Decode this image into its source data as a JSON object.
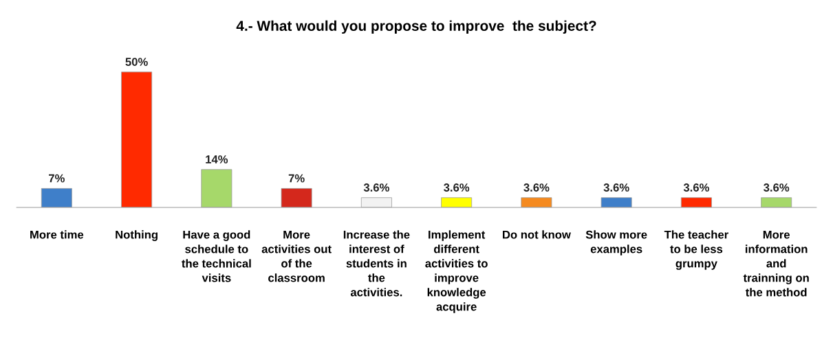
{
  "chart_data": {
    "type": "bar",
    "title": "4.- What would you propose to improve  the subject?",
    "categories": [
      "More time",
      "Nothing",
      "Have a good\nschedule to\nthe technical\nvisits",
      "More\nactivities out\nof the\nclassroom",
      "Increase the\ninterest of\nstudents in\nthe\nactivities.",
      "Implement\ndifferent\nactivities to\nimprove\nknowledge\nacquire",
      "Do not know",
      "Show more\nexamples",
      "The teacher\nto be less\ngrumpy",
      "More\ninformation\nand\ntrainning on\nthe method"
    ],
    "values": [
      7,
      50,
      14,
      7,
      3.6,
      3.6,
      3.6,
      3.6,
      3.6,
      3.6
    ],
    "colors": [
      "#3f7fc9",
      "#ff2a00",
      "#a6d86a",
      "#d4281c",
      "#f2f2f2",
      "#ffff00",
      "#f58a1f",
      "#3f7fc9",
      "#ff2a00",
      "#a6d86a"
    ],
    "value_labels": [
      "7%",
      "50%",
      "14%",
      "7%",
      "3.6%",
      "3.6%",
      "3.6%",
      "3.6%",
      "3.6%",
      "3.6%"
    ],
    "grid": false,
    "legend": false
  }
}
